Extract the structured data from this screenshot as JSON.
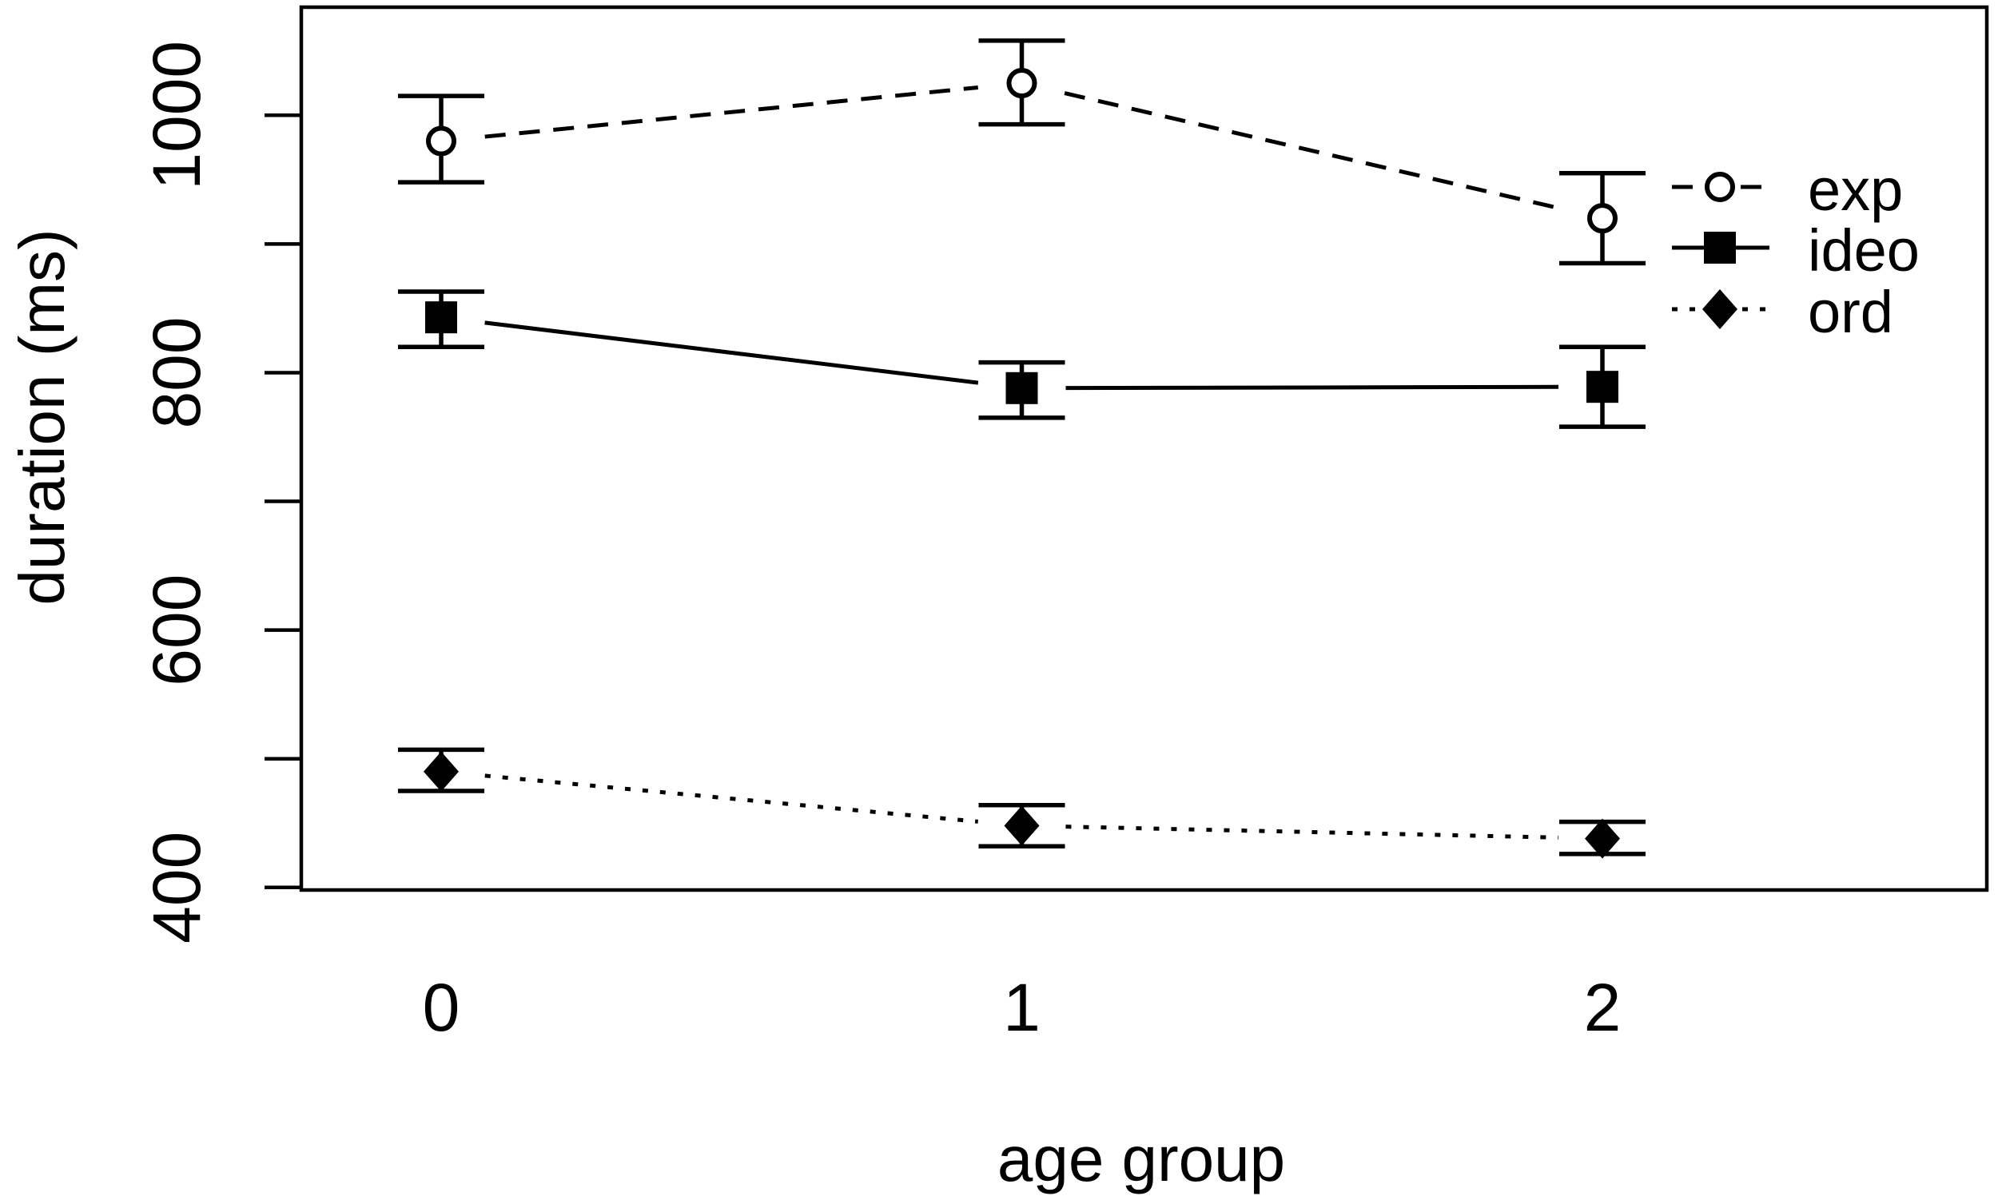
{
  "chart_data": {
    "type": "line",
    "title": "",
    "xlabel": "age group",
    "ylabel": "duration (ms)",
    "x_ticks": [
      {
        "v": 0,
        "label": "0"
      },
      {
        "v": 1,
        "label": "1"
      },
      {
        "v": 2,
        "label": "2"
      }
    ],
    "y_ticks": [
      {
        "v": 400,
        "label": "400"
      },
      {
        "v": 500,
        "label": ""
      },
      {
        "v": 600,
        "label": "600"
      },
      {
        "v": 700,
        "label": ""
      },
      {
        "v": 800,
        "label": "800"
      },
      {
        "v": 900,
        "label": ""
      },
      {
        "v": 1000,
        "label": "1000"
      }
    ],
    "ylim": [
      398,
      1084
    ],
    "xlim": [
      -0.24,
      2.66
    ],
    "grid": false,
    "legend_position": "right-inside",
    "series": [
      {
        "name": "exp",
        "marker": "open-circle",
        "line_style": "dashed",
        "x": [
          0,
          1,
          2
        ],
        "values": [
          980,
          1025,
          920
        ],
        "err_lower": [
          948,
          993,
          885
        ],
        "err_upper": [
          1015,
          1058,
          955
        ]
      },
      {
        "name": "ideo",
        "marker": "filled-square",
        "line_style": "solid",
        "x": [
          0,
          1,
          2
        ],
        "values": [
          843,
          788,
          789
        ],
        "err_lower": [
          820,
          765,
          758
        ],
        "err_upper": [
          863,
          808,
          820
        ]
      },
      {
        "name": "ord",
        "marker": "filled-diamond",
        "line_style": "dotted",
        "x": [
          0,
          1,
          2
        ],
        "values": [
          490,
          448,
          438
        ],
        "err_lower": [
          475,
          432,
          426
        ],
        "err_upper": [
          507,
          464,
          451
        ]
      }
    ],
    "colors": {
      "ink": "#000000",
      "bg": "#ffffff"
    }
  }
}
